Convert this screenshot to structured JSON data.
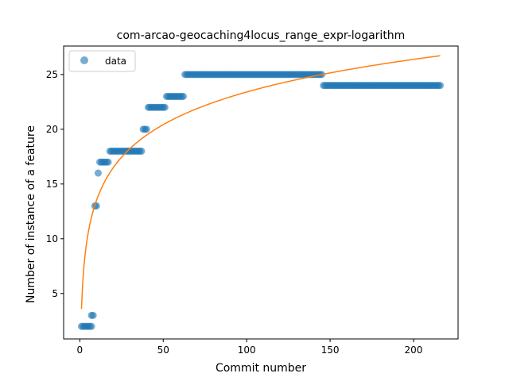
{
  "chart_data": {
    "type": "scatter",
    "title": "com-arcao-geocaching4locus_range_expr-logarithm",
    "xlabel": "Commit number",
    "ylabel": "Number of instance of a feature",
    "xlim": [
      -9.7,
      226.7
    ],
    "ylim": [
      0.85,
      27.6
    ],
    "xticks": [
      0,
      50,
      100,
      150,
      200
    ],
    "yticks": [
      5,
      10,
      15,
      20,
      25
    ],
    "legend": {
      "position": "top-left",
      "entries": [
        {
          "label": "data"
        }
      ]
    },
    "colors": {
      "data": "#1f77b4",
      "fit": "#ff7f0e",
      "axes": "#000000",
      "background": "#ffffff"
    },
    "series": [
      {
        "name": "data",
        "kind": "scatter",
        "segments": [
          {
            "x_start": 1,
            "x_end": 7,
            "y": 2
          },
          {
            "x_start": 7,
            "x_end": 8,
            "y": 3
          },
          {
            "x_start": 9,
            "x_end": 10,
            "y": 13
          },
          {
            "x_start": 11,
            "x_end": 11,
            "y": 16
          },
          {
            "x_start": 12,
            "x_end": 17,
            "y": 17
          },
          {
            "x_start": 18,
            "x_end": 37,
            "y": 18
          },
          {
            "x_start": 38,
            "x_end": 40,
            "y": 20
          },
          {
            "x_start": 41,
            "x_end": 51,
            "y": 22
          },
          {
            "x_start": 52,
            "x_end": 62,
            "y": 23
          },
          {
            "x_start": 63,
            "x_end": 145,
            "y": 25
          },
          {
            "x_start": 146,
            "x_end": 216,
            "y": 24
          }
        ]
      },
      {
        "kind": "line",
        "model": "a + b*ln(x)",
        "a": 3.6,
        "b": 4.3,
        "x_range": [
          1,
          216
        ]
      }
    ]
  }
}
